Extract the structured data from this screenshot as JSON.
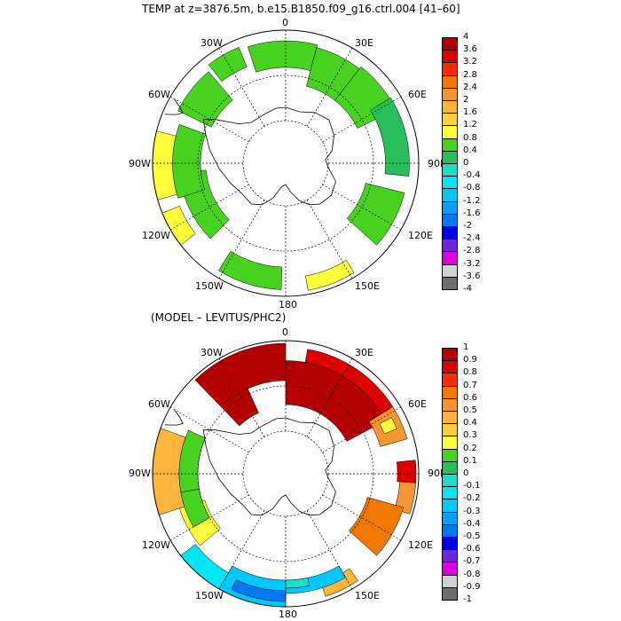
{
  "panels": [
    {
      "title": "TEMP at z=3876.5m, b.e15.B1850.f09_g16.ctrl.004 [41–60]",
      "longitude_labels": {
        "top": "0",
        "upper_left": "30W",
        "upper_right": "30E",
        "left_upper": "60W",
        "right_upper": "60E",
        "left": "90W",
        "right": "90E",
        "left_lower": "120W",
        "right_lower": "120E",
        "lower_left": "150W",
        "lower_right": "150E",
        "bottom": "180"
      },
      "colorbar": {
        "labels": [
          "4",
          "3.6",
          "3.2",
          "2.8",
          "2.4",
          "2",
          "1.6",
          "1.2",
          "0.8",
          "0.4",
          "0",
          "-0.4",
          "-0.8",
          "-1.2",
          "-1.6",
          "-2",
          "-2.4",
          "-2.8",
          "-3.2",
          "-3.6",
          "-4"
        ],
        "colors": [
          "#b40000",
          "#dc0000",
          "#ff2a00",
          "#f07800",
          "#f59632",
          "#ffb43c",
          "#ffd03c",
          "#ffff3c",
          "#46d21e",
          "#28be5a",
          "#1edcc8",
          "#00e6f5",
          "#00c8ff",
          "#00a0ff",
          "#0078f0",
          "#0000e6",
          "#6a2adc",
          "#dc00dc",
          "#d2d2d2",
          "#6e6e6e"
        ]
      },
      "regions": [
        {
          "lon0": -18,
          "lon1": 15,
          "r0": 0.72,
          "r1": 0.92,
          "color": "#46d21e"
        },
        {
          "lon0": 15,
          "lon1": 38,
          "r0": 0.6,
          "r1": 0.9,
          "color": "#46d21e"
        },
        {
          "lon0": 38,
          "lon1": 64,
          "r0": 0.6,
          "r1": 0.92,
          "color": "#46d21e"
        },
        {
          "lon0": 58,
          "lon1": 96,
          "r0": 0.75,
          "r1": 0.93,
          "color": "#28be5a"
        },
        {
          "lon0": 104,
          "lon1": 132,
          "r0": 0.62,
          "r1": 0.92,
          "color": "#46d21e"
        },
        {
          "lon0": 148,
          "lon1": 170,
          "r0": 0.86,
          "r1": 0.97,
          "color": "#ffff3c"
        },
        {
          "lon0": -178,
          "lon1": -148,
          "r0": 0.78,
          "r1": 0.95,
          "color": "#46d21e"
        },
        {
          "lon0": -130,
          "lon1": -118,
          "r0": 0.6,
          "r1": 0.66,
          "color": "#00e6f5"
        },
        {
          "lon0": -135,
          "lon1": -95,
          "r0": 0.6,
          "r1": 0.8,
          "color": "#46d21e"
        },
        {
          "lon0": -108,
          "lon1": -70,
          "r0": 0.64,
          "r1": 0.85,
          "color": "#46d21e"
        },
        {
          "lon0": -106,
          "lon1": -76,
          "r0": 0.85,
          "r1": 1.0,
          "color": "#ffff3c"
        },
        {
          "lon0": -128,
          "lon1": -112,
          "r0": 0.86,
          "r1": 1.0,
          "color": "#ffff3c"
        },
        {
          "lon0": -64,
          "lon1": -40,
          "r0": 0.62,
          "r1": 0.9,
          "color": "#46d21e"
        },
        {
          "lon0": -38,
          "lon1": -22,
          "r0": 0.78,
          "r1": 0.94,
          "color": "#46d21e"
        }
      ]
    },
    {
      "title": "(MODEL – LEVITUS/PHC2)",
      "longitude_labels": {
        "top": "0",
        "upper_left": "30W",
        "upper_right": "30E",
        "left_upper": "60W",
        "right_upper": "60E",
        "left": "90W",
        "right": "90E",
        "left_lower": "120W",
        "right_lower": "120E",
        "lower_left": "150W",
        "lower_right": "150E",
        "bottom": "180"
      },
      "colorbar": {
        "labels": [
          "1",
          "0.9",
          "0.8",
          "0.7",
          "0.6",
          "0.5",
          "0.4",
          "0.3",
          "0.2",
          "0.1",
          "0",
          "-0.1",
          "-0.2",
          "-0.3",
          "-0.4",
          "-0.5",
          "-0.6",
          "-0.7",
          "-0.8",
          "-0.9",
          "-1"
        ],
        "colors": [
          "#b40000",
          "#dc0000",
          "#ff2a00",
          "#f07800",
          "#f59632",
          "#ffb43c",
          "#ffd03c",
          "#ffff3c",
          "#46d21e",
          "#28be5a",
          "#1edcc8",
          "#00e6f5",
          "#00c8ff",
          "#00a0ff",
          "#0078f0",
          "#0000e6",
          "#6a2adc",
          "#dc00dc",
          "#d2d2d2",
          "#6e6e6e"
        ]
      },
      "regions": [
        {
          "lon0": -44,
          "lon1": 0,
          "r0": 0.7,
          "r1": 0.98,
          "color": "#b40000"
        },
        {
          "lon0": -44,
          "lon1": -24,
          "r0": 0.5,
          "r1": 0.7,
          "color": "#b40000"
        },
        {
          "lon0": 0,
          "lon1": 62,
          "r0": 0.52,
          "r1": 0.85,
          "color": "#b40000"
        },
        {
          "lon0": 10,
          "lon1": 58,
          "r0": 0.85,
          "r1": 0.95,
          "color": "#dc0000"
        },
        {
          "lon0": 58,
          "lon1": 74,
          "r0": 0.74,
          "r1": 0.95,
          "color": "#f59632"
        },
        {
          "lon0": 62,
          "lon1": 68,
          "r0": 0.8,
          "r1": 0.9,
          "color": "#ffff3c"
        },
        {
          "lon0": 84,
          "lon1": 94,
          "r0": 0.84,
          "r1": 0.98,
          "color": "#dc0000"
        },
        {
          "lon0": 94,
          "lon1": 108,
          "r0": 0.86,
          "r1": 0.98,
          "color": "#f59632"
        },
        {
          "lon0": 106,
          "lon1": 132,
          "r0": 0.64,
          "r1": 0.92,
          "color": "#f07800"
        },
        {
          "lon0": 146,
          "lon1": 162,
          "r0": 0.86,
          "r1": 0.97,
          "color": "#ffb43c"
        },
        {
          "lon0": -180,
          "lon1": -150,
          "r0": 0.8,
          "r1": 1.0,
          "color": "#00c8ff"
        },
        {
          "lon0": 150,
          "lon1": 180,
          "r0": 0.8,
          "r1": 0.9,
          "color": "#00c8ff"
        },
        {
          "lon0": -180,
          "lon1": -155,
          "r0": 0.88,
          "r1": 0.96,
          "color": "#0078f0"
        },
        {
          "lon0": 168,
          "lon1": 180,
          "r0": 0.8,
          "r1": 0.86,
          "color": "#1edcc8"
        },
        {
          "lon0": -150,
          "lon1": -128,
          "r0": 0.86,
          "r1": 1.0,
          "color": "#00e6f5"
        },
        {
          "lon0": -130,
          "lon1": -108,
          "r0": 0.64,
          "r1": 0.84,
          "color": "#ffff3c"
        },
        {
          "lon0": -108,
          "lon1": -70,
          "r0": 0.8,
          "r1": 1.0,
          "color": "#ffb43c"
        },
        {
          "lon0": -120,
          "lon1": -100,
          "r0": 0.66,
          "r1": 0.8,
          "color": "#46d21e"
        },
        {
          "lon0": -100,
          "lon1": -66,
          "r0": 0.66,
          "r1": 0.8,
          "color": "#46d21e"
        }
      ]
    }
  ]
}
